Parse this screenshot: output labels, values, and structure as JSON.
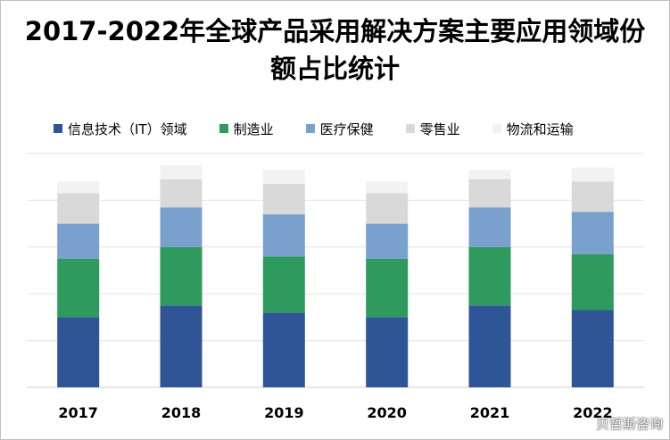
{
  "chart_data": {
    "type": "bar",
    "stacked": true,
    "title": "2017-2022年全球产品采用解决方案主要应用领域份额占比统计",
    "categories": [
      "2017",
      "2018",
      "2019",
      "2020",
      "2021",
      "2022"
    ],
    "ylim": [
      0,
      100
    ],
    "grid": true,
    "legend_position": "top",
    "series": [
      {
        "name": "信息技术（IT）领域",
        "color": "#2f5597",
        "values": [
          30,
          35,
          32,
          30,
          35,
          33
        ]
      },
      {
        "name": "制造业",
        "color": "#2e9a5e",
        "values": [
          25,
          25,
          24,
          25,
          25,
          24
        ]
      },
      {
        "name": "医疗保健",
        "color": "#7aa0cd",
        "values": [
          15,
          17,
          18,
          15,
          17,
          18
        ]
      },
      {
        "name": "零售业",
        "color": "#d9d9d9",
        "values": [
          13,
          12,
          13,
          13,
          12,
          13
        ]
      },
      {
        "name": "物流和运输",
        "color": "#f2f2f2",
        "values": [
          5,
          6,
          6,
          5,
          4,
          6
        ]
      }
    ]
  },
  "watermark": "贝哲斯咨询"
}
